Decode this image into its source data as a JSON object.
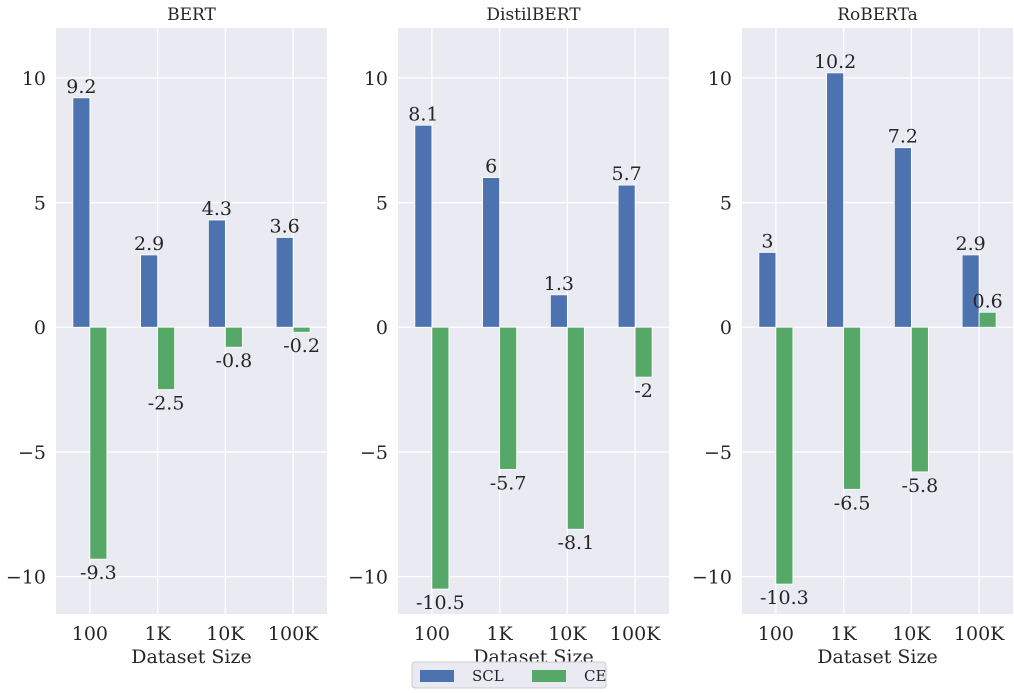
{
  "chart_data": {
    "type": "bar",
    "xlabel": "Dataset Size",
    "ylim": [
      -11.5,
      12
    ],
    "yticks": [
      -10,
      -5,
      0,
      5,
      10
    ],
    "categories": [
      "100",
      "1K",
      "10K",
      "100K"
    ],
    "legend": {
      "placement": "bottom-center",
      "entries": [
        "SCL",
        "CE"
      ]
    },
    "grid": true,
    "colors": {
      "SCL": "#4c72b0",
      "CE": "#55a868",
      "panel_bg": "#eaeaf2",
      "grid": "#ffffff"
    },
    "panels": [
      {
        "title": "BERT",
        "series": [
          {
            "name": "SCL",
            "values": [
              9.2,
              2.9,
              4.3,
              3.6
            ]
          },
          {
            "name": "CE",
            "values": [
              -9.3,
              -2.5,
              -0.8,
              -0.2
            ]
          }
        ]
      },
      {
        "title": "DistilBERT",
        "series": [
          {
            "name": "SCL",
            "values": [
              8.1,
              6,
              1.3,
              5.7
            ]
          },
          {
            "name": "CE",
            "values": [
              -10.5,
              -5.7,
              -8.1,
              -2
            ]
          }
        ]
      },
      {
        "title": "RoBERTa",
        "series": [
          {
            "name": "SCL",
            "values": [
              3,
              10.2,
              7.2,
              2.9
            ]
          },
          {
            "name": "CE",
            "values": [
              -10.3,
              -6.5,
              -5.8,
              0.6
            ]
          }
        ]
      }
    ]
  }
}
